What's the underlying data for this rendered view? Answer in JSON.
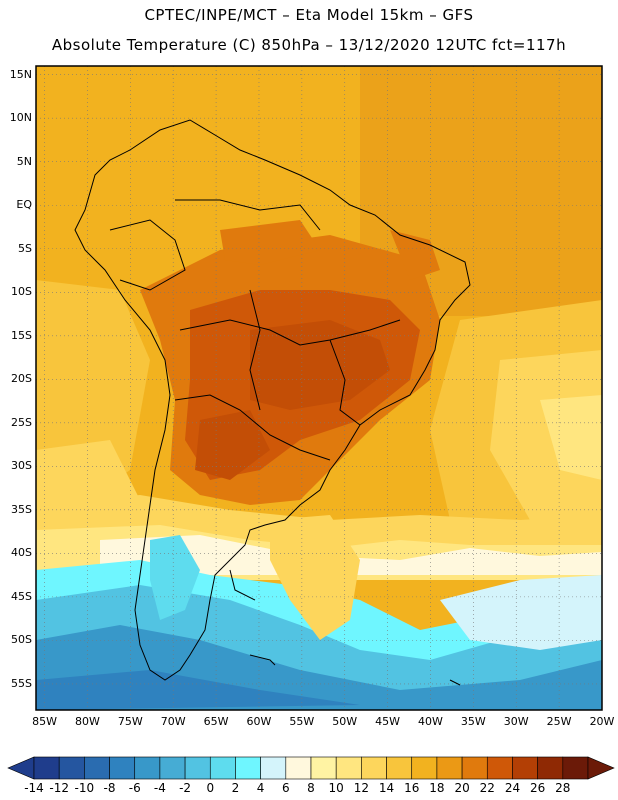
{
  "header": {
    "line1": "CPTEC/INPE/MCT –  Eta Model 15km – GFS",
    "line2": "Absolute Temperature (C) 850hPa – 13/12/2020 12UTC fct=117h"
  },
  "map": {
    "lat_labels": [
      "15N",
      "10N",
      "5N",
      "EQ",
      "5S",
      "10S",
      "15S",
      "20S",
      "25S",
      "30S",
      "35S",
      "40S",
      "45S",
      "50S",
      "55S"
    ],
    "lon_labels": [
      "85W",
      "80W",
      "75W",
      "70W",
      "65W",
      "60W",
      "55W",
      "50W",
      "45W",
      "40W",
      "35W",
      "30W",
      "25W",
      "20W"
    ],
    "extent": {
      "lon": [
        -86,
        -20
      ],
      "lat": [
        -58,
        16
      ]
    }
  },
  "colorbar": {
    "labels": [
      "-14",
      "-12",
      "-10",
      "-8",
      "-6",
      "-4",
      "-2",
      "0",
      "2",
      "4",
      "6",
      "8",
      "10",
      "12",
      "14",
      "16",
      "18",
      "20",
      "22",
      "24",
      "26",
      "28"
    ],
    "colors": [
      "#1f3d8c",
      "#2556a0",
      "#2a6cb0",
      "#2f82bf",
      "#3898c9",
      "#46acd4",
      "#52c3e2",
      "#5edcee",
      "#6ff6ff",
      "#d4f4fb",
      "#fff8dd",
      "#fff3a3",
      "#ffe680",
      "#fdd65c",
      "#f8c53c",
      "#f2b21f",
      "#eb9915",
      "#e07a0d",
      "#cf5808",
      "#b33f05",
      "#8f2904",
      "#6b1a08"
    ]
  }
}
